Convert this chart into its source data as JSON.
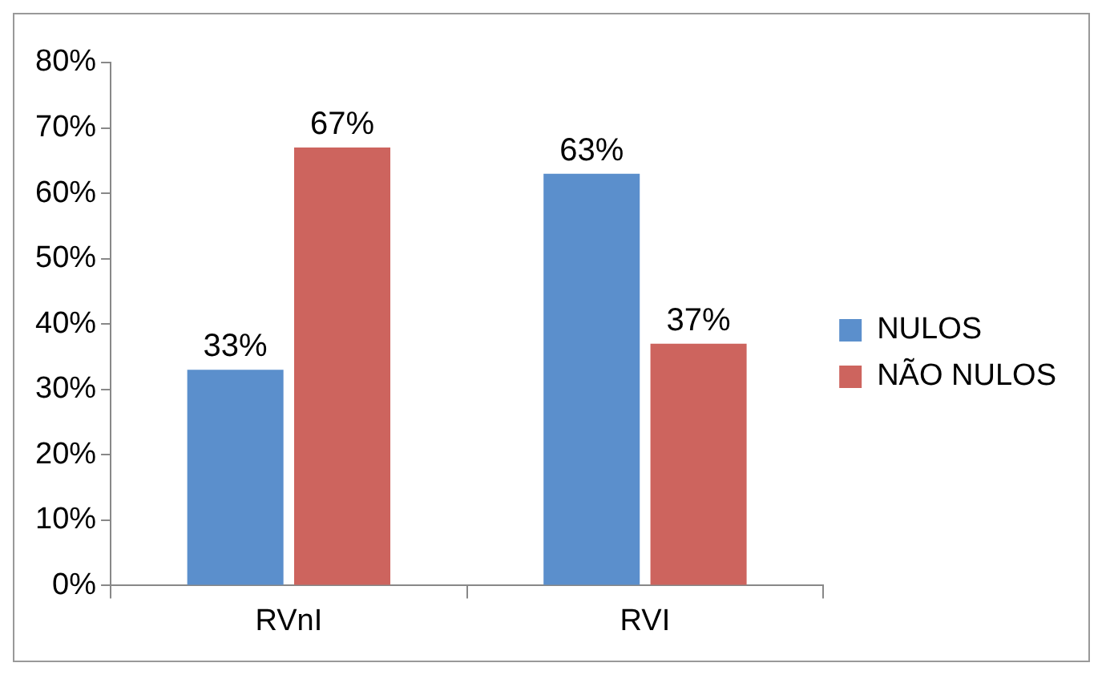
{
  "chart_data": {
    "type": "bar",
    "categories": [
      "RVnI",
      "RVI"
    ],
    "series": [
      {
        "name": "NULOS",
        "color": "#5b8fcc",
        "values": [
          33,
          63
        ],
        "value_labels": [
          "33%",
          "63%"
        ]
      },
      {
        "name": "NÃO NULOS",
        "color": "#cd645e",
        "values": [
          67,
          37
        ],
        "value_labels": [
          "67%",
          "37%"
        ]
      }
    ],
    "ylim": [
      0,
      80
    ],
    "yticks": [
      {
        "value": 0,
        "label": "0%"
      },
      {
        "value": 10,
        "label": "10%"
      },
      {
        "value": 20,
        "label": "20%"
      },
      {
        "value": 30,
        "label": "30%"
      },
      {
        "value": 40,
        "label": "40%"
      },
      {
        "value": 50,
        "label": "50%"
      },
      {
        "value": 60,
        "label": "60%"
      },
      {
        "value": 70,
        "label": "70%"
      },
      {
        "value": 80,
        "label": "80%"
      }
    ],
    "grid": false,
    "legend": "right"
  }
}
